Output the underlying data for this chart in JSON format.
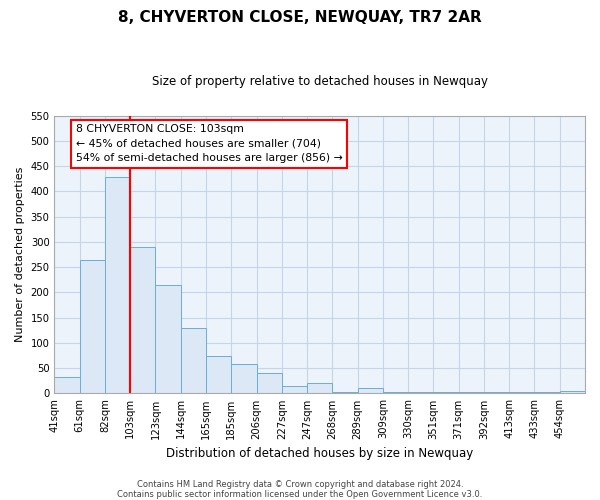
{
  "title": "8, CHYVERTON CLOSE, NEWQUAY, TR7 2AR",
  "subtitle": "Size of property relative to detached houses in Newquay",
  "xlabel": "Distribution of detached houses by size in Newquay",
  "ylabel": "Number of detached properties",
  "bin_labels": [
    "41sqm",
    "61sqm",
    "82sqm",
    "103sqm",
    "123sqm",
    "144sqm",
    "165sqm",
    "185sqm",
    "206sqm",
    "227sqm",
    "247sqm",
    "268sqm",
    "289sqm",
    "309sqm",
    "330sqm",
    "351sqm",
    "371sqm",
    "392sqm",
    "413sqm",
    "433sqm",
    "454sqm"
  ],
  "bar_values": [
    32,
    265,
    428,
    290,
    214,
    130,
    75,
    59,
    40,
    15,
    20,
    3,
    10,
    3,
    2,
    2,
    2,
    2,
    2,
    2,
    5
  ],
  "bar_color": "#dce8f5",
  "bar_edge_color": "#6aaed6",
  "vline_color": "red",
  "ylim": [
    0,
    550
  ],
  "yticks": [
    0,
    50,
    100,
    150,
    200,
    250,
    300,
    350,
    400,
    450,
    500,
    550
  ],
  "annotation_title": "8 CHYVERTON CLOSE: 103sqm",
  "annotation_line1": "← 45% of detached houses are smaller (704)",
  "annotation_line2": "54% of semi-detached houses are larger (856) →",
  "footer_line1": "Contains HM Land Registry data © Crown copyright and database right 2024.",
  "footer_line2": "Contains public sector information licensed under the Open Government Licence v3.0.",
  "background_color": "#ffffff",
  "plot_bg_color": "#edf3fb",
  "grid_color": "#c5d5e8"
}
